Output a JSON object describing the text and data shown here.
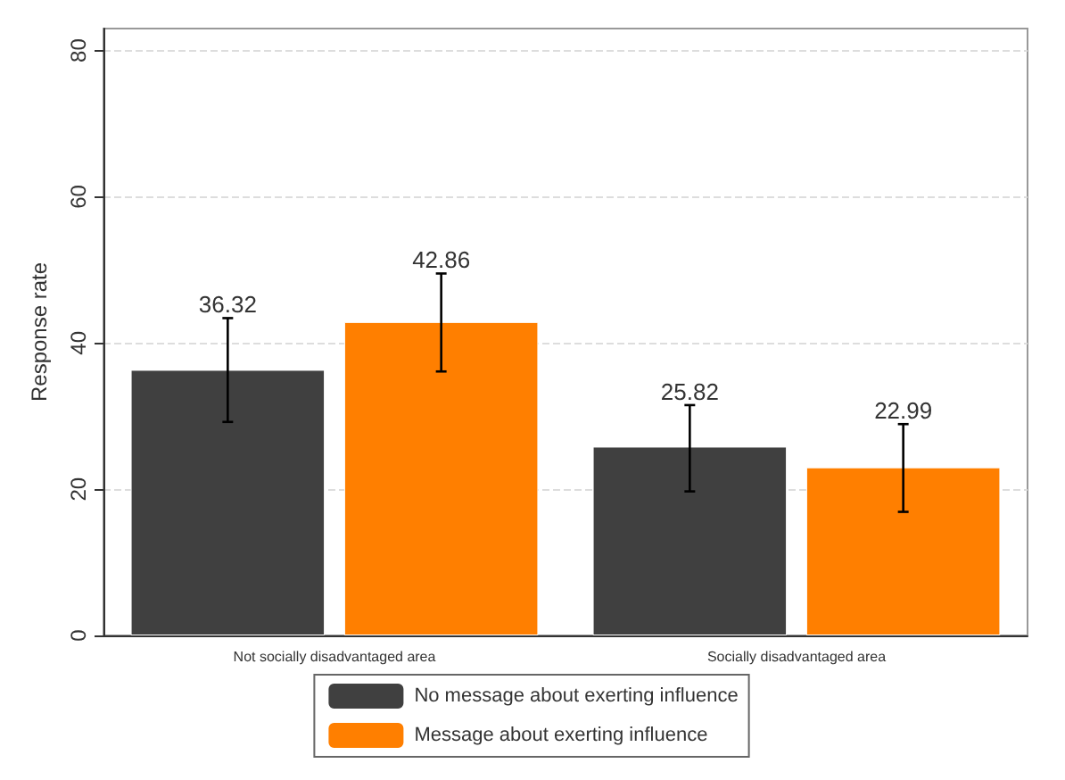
{
  "chart_data": {
    "type": "bar",
    "ylabel": "Response rate",
    "categories": [
      "Not socially disadvantaged area",
      "Socially disadvantaged area"
    ],
    "series": [
      {
        "name": "No message about exerting influence",
        "color": "#404040",
        "values": [
          36.32,
          25.82
        ],
        "errors": [
          [
            29.2,
            43.4
          ],
          [
            19.7,
            31.5
          ]
        ]
      },
      {
        "name": "Message about exerting influence",
        "color": "#ff7f00",
        "values": [
          42.86,
          22.99
        ],
        "errors": [
          [
            36.1,
            49.5
          ],
          [
            16.9,
            28.9
          ]
        ]
      }
    ],
    "ylim": [
      0,
      83
    ],
    "yticks": [
      0,
      20,
      40,
      60,
      80
    ],
    "grid": "y",
    "legend": "bottom",
    "data_labels": true
  }
}
